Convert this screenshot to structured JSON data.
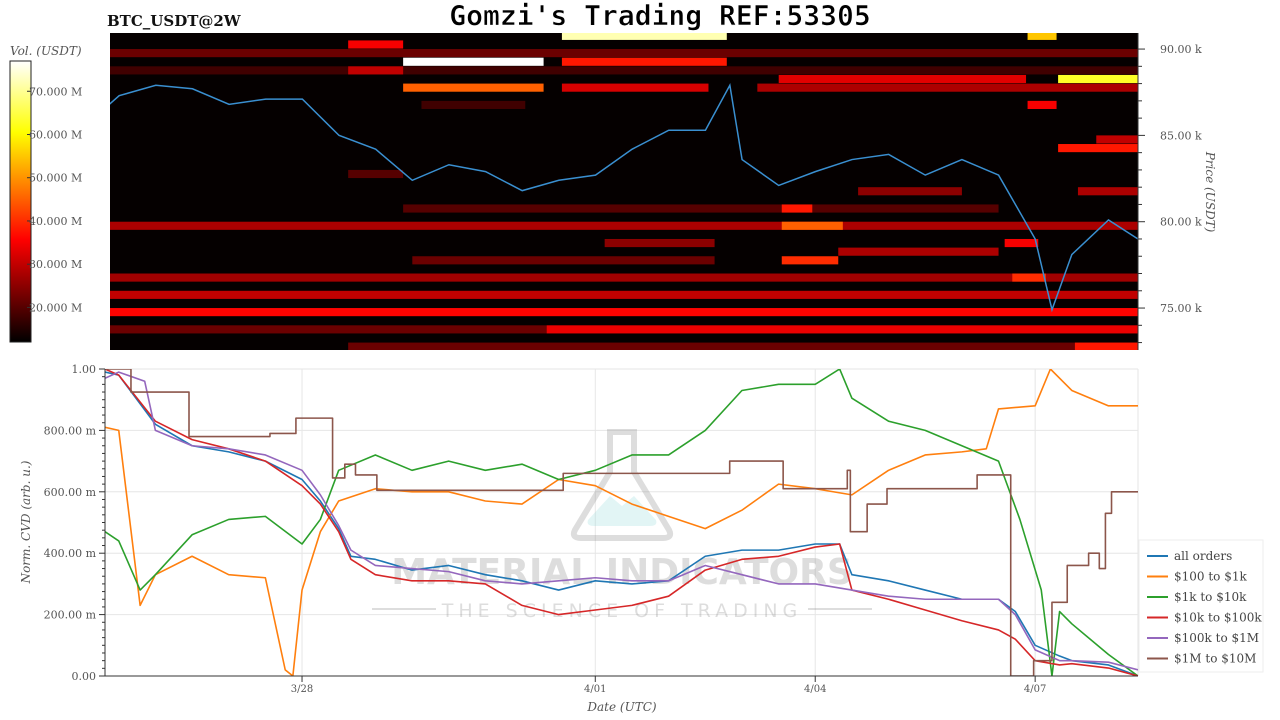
{
  "header": {
    "title": "Gomzi's Trading REF:53305",
    "symbol": "BTC_USDT@2W"
  },
  "watermark": {
    "brand": "MATERIAL INDICATORS",
    "tagline": "THE SCIENCE OF TRADING"
  },
  "chart_data": [
    {
      "type": "heatmap",
      "subtitle": "BTC_USDT@2W",
      "ylabel": "Price (USDT)",
      "colorbar_label": "Vol. (USDT)",
      "colormap": "hot",
      "clim_musdt": [
        12,
        77
      ],
      "colorbar_ticks": [
        "20.000 M",
        "30.000 M",
        "40.000 M",
        "50.000 M",
        "60.000 M",
        "70.000 M"
      ],
      "colorbar_tick_values": [
        20,
        30,
        40,
        50,
        60,
        70
      ],
      "xlim": [
        "03/25 09:00",
        "04/08 09:40"
      ],
      "ylim_k": [
        72.57,
        90.93
      ],
      "yticks": [
        "75.00 k",
        "80.00 k",
        "85.00 k",
        "90.00 k"
      ],
      "ytick_values": [
        75,
        80,
        85,
        90
      ],
      "bin_k": 0.5,
      "cells": [
        {
          "price": 89.75,
          "start": "03/25 09:00",
          "end": "04/08 09:40",
          "vol": 22
        },
        {
          "price": 88.75,
          "start": "03/25 09:00",
          "end": "04/08 09:40",
          "vol": 18
        },
        {
          "price": 79.75,
          "start": "03/25 09:00",
          "end": "04/08 09:40",
          "vol": 28
        },
        {
          "price": 76.75,
          "start": "03/25 09:00",
          "end": "04/08 09:40",
          "vol": 27
        },
        {
          "price": 75.75,
          "start": "03/25 09:00",
          "end": "04/08 09:40",
          "vol": 30
        },
        {
          "price": 74.75,
          "start": "03/25 09:00",
          "end": "04/08 09:40",
          "vol": 36
        },
        {
          "price": 73.75,
          "start": "03/25 09:00",
          "end": "03/31 08:00",
          "vol": 22
        },
        {
          "price": 73.75,
          "start": "03/31 08:00",
          "end": "04/08 09:40",
          "vol": 34
        },
        {
          "price": 72.75,
          "start": "03/28 15:00",
          "end": "04/08 09:40",
          "vol": 22
        },
        {
          "price": 72.75,
          "start": "04/07 13:00",
          "end": "04/08 09:40",
          "vol": 38
        },
        {
          "price": 90.75,
          "start": "03/31 13:00",
          "end": "04/02 19:00",
          "vol": 72
        },
        {
          "price": 90.75,
          "start": "04/06 21:30",
          "end": "04/07 07:00",
          "vol": 55
        },
        {
          "price": 90.25,
          "start": "03/28 15:00",
          "end": "03/29 09:00",
          "vol": 35
        },
        {
          "price": 89.25,
          "start": "03/29 09:00",
          "end": "03/31 07:00",
          "vol": 78
        },
        {
          "price": 89.25,
          "start": "03/31 13:00",
          "end": "04/02 19:00",
          "vol": 38
        },
        {
          "price": 88.75,
          "start": "03/28 15:00",
          "end": "03/29 09:00",
          "vol": 30
        },
        {
          "price": 88.25,
          "start": "04/03 12:00",
          "end": "04/06 21:00",
          "vol": 33
        },
        {
          "price": 88.25,
          "start": "04/07 07:30",
          "end": "04/08 09:40",
          "vol": 63
        },
        {
          "price": 87.75,
          "start": "03/29 09:00",
          "end": "03/31 07:00",
          "vol": 45
        },
        {
          "price": 87.75,
          "start": "03/31 13:00",
          "end": "04/02 13:00",
          "vol": 32
        },
        {
          "price": 87.75,
          "start": "04/03 05:00",
          "end": "04/08 09:40",
          "vol": 28
        },
        {
          "price": 86.75,
          "start": "03/29 15:00",
          "end": "03/31 01:00",
          "vol": 18
        },
        {
          "price": 86.75,
          "start": "04/06 21:30",
          "end": "04/07 07:00",
          "vol": 35
        },
        {
          "price": 84.75,
          "start": "04/07 20:00",
          "end": "04/08 09:40",
          "vol": 30
        },
        {
          "price": 84.25,
          "start": "04/07 07:30",
          "end": "04/08 09:40",
          "vol": 38
        },
        {
          "price": 82.75,
          "start": "03/28 15:00",
          "end": "03/29 09:00",
          "vol": 20
        },
        {
          "price": 81.75,
          "start": "04/04 14:00",
          "end": "04/06 00:00",
          "vol": 25
        },
        {
          "price": 81.75,
          "start": "04/07 14:00",
          "end": "04/08 09:40",
          "vol": 28
        },
        {
          "price": 80.75,
          "start": "03/29 09:00",
          "end": "04/06 12:00",
          "vol": 20
        },
        {
          "price": 80.75,
          "start": "04/03 13:00",
          "end": "04/03 23:00",
          "vol": 38
        },
        {
          "price": 79.75,
          "start": "04/03 13:00",
          "end": "04/04 09:00",
          "vol": 45
        },
        {
          "price": 78.75,
          "start": "04/01 03:00",
          "end": "04/02 15:00",
          "vol": 25
        },
        {
          "price": 78.75,
          "start": "04/06 14:00",
          "end": "04/07 01:00",
          "vol": 35
        },
        {
          "price": 78.25,
          "start": "04/04 07:30",
          "end": "04/06 12:00",
          "vol": 28
        },
        {
          "price": 77.75,
          "start": "03/29 12:00",
          "end": "04/02 15:00",
          "vol": 22
        },
        {
          "price": 77.75,
          "start": "04/03 13:00",
          "end": "04/04 07:30",
          "vol": 40
        },
        {
          "price": 76.75,
          "start": "04/06 16:30",
          "end": "04/07 03:30",
          "vol": 40
        }
      ],
      "price_series": {
        "x": [
          "03/25 07:30",
          "03/25 12:00",
          "03/26 00:00",
          "03/26 12:00",
          "03/27 00:00",
          "03/27 12:00",
          "03/28 00:00",
          "03/28 12:00",
          "03/29 00:00",
          "03/29 12:00",
          "03/30 00:00",
          "03/30 12:00",
          "03/31 00:00",
          "03/31 12:00",
          "04/01 00:00",
          "04/01 12:00",
          "04/02 00:00",
          "04/02 12:00",
          "04/02 20:00",
          "04/03 00:00",
          "04/03 12:00",
          "04/04 00:00",
          "04/04 12:00",
          "04/05 00:00",
          "04/05 12:00",
          "04/06 00:00",
          "04/06 12:00",
          "04/07 00:00",
          "04/07 05:30",
          "04/07 12:00",
          "04/08 00:00",
          "04/08 09:40"
        ],
        "y": [
          86.6,
          87.3,
          87.9,
          87.7,
          86.8,
          87.1,
          87.1,
          85.0,
          84.2,
          82.4,
          83.3,
          82.9,
          81.8,
          82.4,
          82.7,
          84.2,
          85.3,
          85.3,
          87.9,
          83.6,
          82.1,
          82.9,
          83.6,
          83.9,
          82.7,
          83.6,
          82.7,
          79.0,
          74.9,
          78.1,
          80.1,
          79.0
        ]
      }
    },
    {
      "type": "line",
      "xlabel": "Date (UTC)",
      "ylabel": "Norm. CVD (arb. u.)",
      "xlim": [
        "03/25 07:30",
        "04/08 09:40"
      ],
      "ylim": [
        0,
        1
      ],
      "xticks": [
        "3/28",
        "4/01",
        "4/04",
        "4/07"
      ],
      "xtick_dates": [
        "03/28 00:00",
        "04/01 00:00",
        "04/04 00:00",
        "04/07 00:00"
      ],
      "yticks": [
        "0.00",
        "200.00 m",
        "400.00 m",
        "600.00 m",
        "800.00 m",
        "1.00"
      ],
      "ytick_values": [
        0,
        0.2,
        0.4,
        0.6,
        0.8,
        1.0
      ],
      "grid": true,
      "legend": "right",
      "series": [
        {
          "name": "all orders",
          "color": "#1f77b4",
          "step": false,
          "x": [
            "03/25 07:30",
            "03/25 12:00",
            "03/26 00:00",
            "03/26 12:00",
            "03/27 00:00",
            "03/27 12:00",
            "03/28 00:00",
            "03/28 06:00",
            "03/28 12:00",
            "03/28 16:00",
            "03/29 00:00",
            "03/29 12:00",
            "03/30 00:00",
            "03/30 12:00",
            "03/31 00:00",
            "03/31 12:00",
            "04/01 00:00",
            "04/01 12:00",
            "04/02 00:00",
            "04/02 12:00",
            "04/03 00:00",
            "04/03 12:00",
            "04/04 00:00",
            "04/04 08:00",
            "04/04 12:00",
            "04/05 00:00",
            "04/05 12:00",
            "04/06 00:00",
            "04/06 12:00",
            "04/06 17:30",
            "04/07 00:00",
            "04/07 08:00",
            "04/07 12:00",
            "04/08 00:00",
            "04/08 09:40"
          ],
          "y": [
            0.99,
            0.98,
            0.82,
            0.75,
            0.73,
            0.7,
            0.64,
            0.57,
            0.48,
            0.39,
            0.38,
            0.345,
            0.36,
            0.33,
            0.31,
            0.28,
            0.31,
            0.3,
            0.31,
            0.39,
            0.41,
            0.41,
            0.43,
            0.43,
            0.33,
            0.31,
            0.28,
            0.25,
            0.25,
            0.21,
            0.1,
            0.065,
            0.05,
            0.036,
            0.0
          ]
        },
        {
          "name": "$100 to $1k",
          "color": "#ff7f0e",
          "step": false,
          "x": [
            "03/25 07:30",
            "03/25 12:00",
            "03/25 19:00",
            "03/26 00:00",
            "03/26 12:00",
            "03/27 00:00",
            "03/27 12:00",
            "03/27 18:30",
            "03/27 21:00",
            "03/28 00:00",
            "03/28 06:00",
            "03/28 12:00",
            "03/29 00:00",
            "03/29 12:00",
            "03/30 00:00",
            "03/30 12:00",
            "03/31 00:00",
            "03/31 12:00",
            "04/01 00:00",
            "04/01 12:00",
            "04/02 00:00",
            "04/02 12:00",
            "04/03 00:00",
            "04/03 12:00",
            "04/04 00:00",
            "04/04 12:00",
            "04/05 00:00",
            "04/05 12:00",
            "04/06 00:00",
            "04/06 08:00",
            "04/06 12:00",
            "04/07 00:00",
            "04/07 05:00",
            "04/07 12:00",
            "04/08 00:00",
            "04/08 09:40"
          ],
          "y": [
            0.81,
            0.8,
            0.23,
            0.33,
            0.39,
            0.33,
            0.32,
            0.02,
            0.0,
            0.28,
            0.47,
            0.57,
            0.61,
            0.6,
            0.6,
            0.57,
            0.56,
            0.64,
            0.62,
            0.56,
            0.52,
            0.48,
            0.54,
            0.625,
            0.61,
            0.59,
            0.67,
            0.72,
            0.73,
            0.74,
            0.87,
            0.88,
            1.0,
            0.93,
            0.88,
            0.88
          ]
        },
        {
          "name": "$1k to $10k",
          "color": "#2ca02c",
          "step": false,
          "x": [
            "03/25 07:30",
            "03/25 12:00",
            "03/25 19:00",
            "03/26 00:00",
            "03/26 12:00",
            "03/27 00:00",
            "03/27 12:00",
            "03/28 00:00",
            "03/28 06:00",
            "03/28 12:00",
            "03/29 00:00",
            "03/29 12:00",
            "03/30 00:00",
            "03/30 12:00",
            "03/31 00:00",
            "03/31 12:00",
            "04/01 00:00",
            "04/01 12:00",
            "04/02 00:00",
            "04/02 12:00",
            "04/03 00:00",
            "04/03 12:00",
            "04/04 00:00",
            "04/04 08:00",
            "04/04 12:00",
            "04/05 00:00",
            "04/05 12:00",
            "04/06 00:00",
            "04/06 12:00",
            "04/06 19:00",
            "04/07 02:00",
            "04/07 05:30",
            "04/07 08:00",
            "04/07 12:00",
            "04/08 00:00",
            "04/08 09:40"
          ],
          "y": [
            0.47,
            0.44,
            0.28,
            0.33,
            0.46,
            0.51,
            0.52,
            0.43,
            0.51,
            0.67,
            0.72,
            0.67,
            0.7,
            0.67,
            0.69,
            0.64,
            0.67,
            0.72,
            0.72,
            0.8,
            0.93,
            0.95,
            0.95,
            1.0,
            0.905,
            0.83,
            0.8,
            0.75,
            0.7,
            0.51,
            0.28,
            0.0,
            0.21,
            0.17,
            0.07,
            0.0
          ]
        },
        {
          "name": "$10k to $100k",
          "color": "#d62728",
          "step": false,
          "x": [
            "03/25 07:30",
            "03/25 12:00",
            "03/26 00:00",
            "03/26 12:00",
            "03/27 00:00",
            "03/27 12:00",
            "03/28 00:00",
            "03/28 06:00",
            "03/28 12:00",
            "03/28 16:00",
            "03/29 00:00",
            "03/29 12:00",
            "03/30 00:00",
            "03/30 12:00",
            "03/31 00:00",
            "03/31 12:00",
            "04/01 00:00",
            "04/01 12:00",
            "04/02 00:00",
            "04/02 12:00",
            "04/03 00:00",
            "04/03 12:00",
            "04/04 00:00",
            "04/04 08:00",
            "04/04 12:00",
            "04/05 00:00",
            "04/05 12:00",
            "04/06 00:00",
            "04/06 12:00",
            "04/06 17:30",
            "04/07 00:00",
            "04/07 08:00",
            "04/07 12:00",
            "04/08 00:00",
            "04/08 09:40"
          ],
          "y": [
            1.0,
            0.98,
            0.83,
            0.77,
            0.74,
            0.7,
            0.62,
            0.56,
            0.47,
            0.38,
            0.33,
            0.31,
            0.31,
            0.3,
            0.23,
            0.2,
            0.215,
            0.23,
            0.26,
            0.345,
            0.38,
            0.39,
            0.42,
            0.43,
            0.28,
            0.25,
            0.215,
            0.18,
            0.15,
            0.12,
            0.05,
            0.036,
            0.04,
            0.026,
            0.0
          ]
        },
        {
          "name": "$100k to $1M",
          "color": "#9467bd",
          "step": false,
          "x": [
            "03/25 07:30",
            "03/25 12:00",
            "03/25 20:30",
            "03/26 00:00",
            "03/26 12:00",
            "03/27 00:00",
            "03/27 12:00",
            "03/28 00:00",
            "03/28 06:00",
            "03/28 12:00",
            "03/28 16:00",
            "03/29 00:00",
            "03/29 12:00",
            "03/30 00:00",
            "03/30 12:00",
            "03/31 00:00",
            "03/31 12:00",
            "04/01 00:00",
            "04/01 12:00",
            "04/02 00:00",
            "04/02 12:00",
            "04/03 00:00",
            "04/03 12:00",
            "04/04 00:00",
            "04/04 12:00",
            "04/05 00:00",
            "04/05 12:00",
            "04/06 00:00",
            "04/06 12:00",
            "04/06 17:30",
            "04/07 00:00",
            "04/07 08:00",
            "04/07 12:00",
            "04/08 00:00",
            "04/08 09:40"
          ],
          "y": [
            0.97,
            0.99,
            0.96,
            0.8,
            0.75,
            0.74,
            0.72,
            0.67,
            0.59,
            0.49,
            0.41,
            0.36,
            0.35,
            0.34,
            0.31,
            0.3,
            0.31,
            0.32,
            0.31,
            0.31,
            0.36,
            0.33,
            0.3,
            0.3,
            0.28,
            0.26,
            0.25,
            0.25,
            0.25,
            0.2,
            0.085,
            0.05,
            0.05,
            0.045,
            0.02
          ]
        },
        {
          "name": "$1M to $10M",
          "color": "#8c564b",
          "step": true,
          "x": [
            "03/25 07:30",
            "03/25 16:00",
            "03/26 11:00",
            "03/27 13:30",
            "03/27 22:00",
            "03/28 10:00",
            "03/28 14:00",
            "03/28 17:30",
            "03/29 00:30",
            "03/31 13:30",
            "04/02 20:00",
            "04/03 13:30",
            "04/04 10:30",
            "04/04 11:30",
            "04/04 17:00",
            "04/04 23:30",
            "04/06 05:00",
            "04/06 16:00",
            "04/06 23:30",
            "04/07 05:30",
            "04/07 10:30",
            "04/07 17:30",
            "04/07 21:00",
            "04/07 23:00",
            "04/08 01:00",
            "04/08 09:40"
          ],
          "y": [
            1.0,
            0.925,
            0.78,
            0.79,
            0.84,
            0.645,
            0.69,
            0.655,
            0.605,
            0.66,
            0.7,
            0.61,
            0.67,
            0.47,
            0.56,
            0.61,
            0.655,
            0.0,
            0.05,
            0.24,
            0.36,
            0.4,
            0.35,
            0.53,
            0.6,
            0.6
          ]
        }
      ]
    }
  ]
}
